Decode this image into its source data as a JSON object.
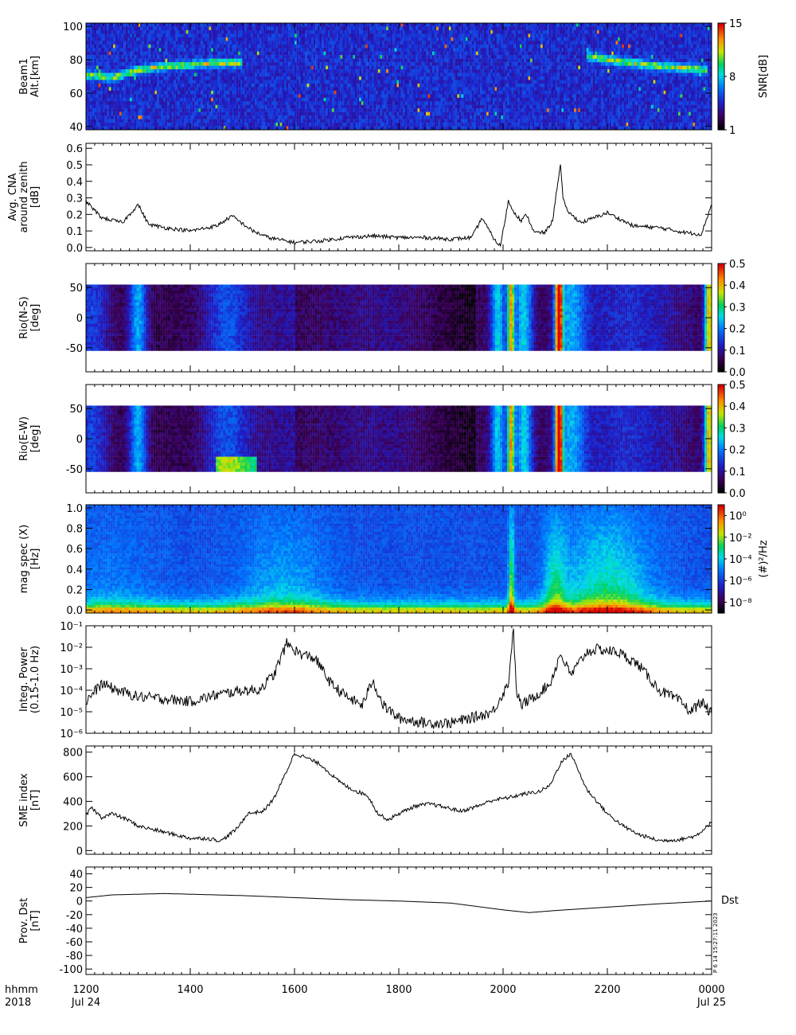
{
  "time_axis": {
    "ticks": [
      {
        "hour": 12,
        "label": "1200",
        "sub": "Jul 24"
      },
      {
        "hour": 14,
        "label": "1400",
        "sub": ""
      },
      {
        "hour": 16,
        "label": "1600",
        "sub": ""
      },
      {
        "hour": 18,
        "label": "1800",
        "sub": ""
      },
      {
        "hour": 20,
        "label": "2000",
        "sub": ""
      },
      {
        "hour": 22,
        "label": "2200",
        "sub": ""
      },
      {
        "hour": 24,
        "label": "0000",
        "sub": "Jul 25"
      }
    ],
    "corner_line1": "hhmm",
    "corner_line2": "2018",
    "range_hours": [
      12,
      24
    ]
  },
  "stamp": "P 6 14 15:27:11 2023",
  "chart_data": [
    {
      "type": "heatmap",
      "ylabel_lines": [
        "Beam1",
        "Alt.[km]"
      ],
      "ylim": [
        38,
        102
      ],
      "yticks": [
        "40",
        "60",
        "80",
        "100"
      ],
      "ytick_values": [
        40,
        60,
        80,
        100
      ],
      "colorbar": {
        "label": "SNR[dB]",
        "range": [
          1,
          15
        ],
        "ticks": [
          "1",
          "8",
          "15"
        ],
        "tick_values": [
          1,
          8,
          15
        ],
        "log": false
      },
      "layers": [
        {
          "name": "",
          "x": [
            12.0,
            12.5,
            13.0,
            13.5,
            14.0,
            14.5,
            15.0
          ],
          "y": [
            71,
            69,
            74,
            76,
            77,
            78,
            78
          ]
        },
        {
          "name": "",
          "x": [
            21.6,
            22.0,
            22.5,
            23.0,
            23.5,
            23.9
          ],
          "y": [
            82,
            80,
            78,
            76,
            75,
            74
          ]
        }
      ]
    },
    {
      "type": "line",
      "ylabel_lines": [
        "Avg. CNA",
        "around zenith",
        "[dB]"
      ],
      "ylim": [
        -0.02,
        0.63
      ],
      "yticks": [
        "0.0",
        "0.1",
        "0.2",
        "0.3",
        "0.4",
        "0.5",
        "0.6"
      ],
      "ytick_values": [
        0,
        0.1,
        0.2,
        0.3,
        0.4,
        0.5,
        0.6
      ],
      "x": [
        12.0,
        12.3,
        12.7,
        13.0,
        13.2,
        13.5,
        14.0,
        14.5,
        14.8,
        15.2,
        15.5,
        16.0,
        16.5,
        17.0,
        17.5,
        18.0,
        18.5,
        19.0,
        19.4,
        19.6,
        19.7,
        19.85,
        19.95,
        20.1,
        20.2,
        20.35,
        20.45,
        20.6,
        20.8,
        20.95,
        21.05,
        21.1,
        21.15,
        21.2,
        21.3,
        21.5,
        22.0,
        22.5,
        23.0,
        23.5,
        23.8,
        24.0
      ],
      "y": [
        0.28,
        0.18,
        0.15,
        0.26,
        0.14,
        0.12,
        0.1,
        0.13,
        0.19,
        0.1,
        0.06,
        0.03,
        0.04,
        0.06,
        0.07,
        0.06,
        0.06,
        0.05,
        0.06,
        0.18,
        0.12,
        0.04,
        0.01,
        0.28,
        0.22,
        0.16,
        0.2,
        0.09,
        0.09,
        0.16,
        0.4,
        0.5,
        0.3,
        0.24,
        0.2,
        0.15,
        0.21,
        0.13,
        0.12,
        0.09,
        0.08,
        0.26
      ]
    },
    {
      "type": "heatmap",
      "ylabel_lines": [
        "Rio(N-S)",
        "[deg]"
      ],
      "ylim": [
        -90,
        90
      ],
      "yticks": [
        "-50",
        "0",
        "50"
      ],
      "ytick_values": [
        -50,
        0,
        50
      ],
      "colorbar": {
        "label": "",
        "range": [
          0,
          0.5
        ],
        "ticks": [
          "0.0",
          "0.1",
          "0.2",
          "0.3",
          "0.4",
          "0.5"
        ],
        "tick_values": [
          0,
          0.1,
          0.2,
          0.3,
          0.4,
          0.5
        ],
        "log": false
      },
      "extent": [
        -56,
        56
      ]
    },
    {
      "type": "heatmap",
      "ylabel_lines": [
        "Rio(E-W)",
        "[deg]"
      ],
      "ylim": [
        -90,
        90
      ],
      "yticks": [
        "-50",
        "0",
        "50"
      ],
      "ytick_values": [
        -50,
        0,
        50
      ],
      "colorbar": {
        "label": "",
        "range": [
          0,
          0.5
        ],
        "ticks": [
          "0.0",
          "0.1",
          "0.2",
          "0.3",
          "0.4",
          "0.5"
        ],
        "tick_values": [
          0,
          0.1,
          0.2,
          0.3,
          0.4,
          0.5
        ],
        "log": false
      },
      "extent": [
        -56,
        56
      ]
    },
    {
      "type": "heatmap",
      "ylabel_lines": [
        "mag spec (X)",
        "[Hz]"
      ],
      "ylim": [
        -0.03,
        1.03
      ],
      "yticks": [
        "0.0",
        "0.2",
        "0.4",
        "0.6",
        "0.8",
        "1.0"
      ],
      "ytick_values": [
        0,
        0.2,
        0.4,
        0.6,
        0.8,
        1.0
      ],
      "colorbar": {
        "label": "(#)²/Hz",
        "range": [
          1e-09,
          10
        ],
        "ticks": [
          "10⁻⁸",
          "10⁻⁶",
          "10⁻⁴",
          "10⁻²",
          "10⁰"
        ],
        "tick_values": [
          1e-08,
          1e-06,
          0.0001,
          0.01,
          1
        ],
        "log": true
      }
    },
    {
      "type": "line",
      "ylabel_lines": [
        "Integ. Power",
        "(0.15-1.0 Hz)"
      ],
      "ylim": [
        1e-06,
        0.1
      ],
      "log_y": true,
      "yticks": [
        "10⁻⁶",
        "10⁻⁵",
        "10⁻⁴",
        "10⁻³",
        "10⁻²",
        "10⁻¹"
      ],
      "ytick_values": [
        1e-06,
        1e-05,
        0.0001,
        0.001,
        0.01,
        0.1
      ],
      "x": [
        12.0,
        12.3,
        12.6,
        13.0,
        13.5,
        14.0,
        14.5,
        15.0,
        15.3,
        15.6,
        15.85,
        16.1,
        16.4,
        16.7,
        17.0,
        17.3,
        17.5,
        17.7,
        18.0,
        18.5,
        19.0,
        19.5,
        19.8,
        20.1,
        20.2,
        20.25,
        20.35,
        20.6,
        20.9,
        21.1,
        21.3,
        21.6,
        21.8,
        22.2,
        22.6,
        23.0,
        23.4,
        23.6,
        23.8,
        24.0
      ],
      "y": [
        3e-05,
        0.0002,
        0.0001,
        5e-05,
        4e-05,
        3e-05,
        6e-05,
        0.0001,
        0.0001,
        0.0005,
        0.015,
        0.005,
        0.003,
        0.0002,
        5e-05,
        2e-05,
        0.0003,
        2e-05,
        5e-06,
        3e-06,
        3e-06,
        6e-06,
        1e-05,
        0.0002,
        0.09,
        0.0001,
        2e-05,
        5e-05,
        0.0002,
        0.005,
        0.0005,
        0.006,
        0.008,
        0.006,
        0.0015,
        0.0001,
        3e-05,
        1e-05,
        3e-05,
        8e-06
      ]
    },
    {
      "type": "line",
      "ylabel_lines": [
        "SME index",
        "[nT]"
      ],
      "ylim": [
        -30,
        850
      ],
      "yticks": [
        "0",
        "200",
        "400",
        "600",
        "800"
      ],
      "ytick_values": [
        0,
        200,
        400,
        600,
        800
      ],
      "x": [
        12.0,
        12.1,
        12.3,
        12.5,
        12.8,
        13.0,
        13.5,
        14.0,
        14.3,
        14.6,
        14.9,
        15.1,
        15.4,
        15.6,
        15.8,
        16.0,
        16.2,
        16.5,
        16.8,
        17.0,
        17.2,
        17.4,
        17.6,
        17.8,
        18.0,
        18.3,
        18.6,
        18.9,
        19.2,
        19.5,
        19.8,
        20.1,
        20.4,
        20.7,
        20.9,
        21.1,
        21.3,
        21.6,
        21.8,
        22.0,
        22.3,
        22.6,
        23.0,
        23.4,
        23.7,
        24.0
      ],
      "y": [
        280,
        350,
        270,
        300,
        250,
        200,
        150,
        100,
        100,
        80,
        180,
        300,
        320,
        420,
        600,
        790,
        760,
        700,
        580,
        520,
        480,
        450,
        300,
        250,
        300,
        360,
        380,
        350,
        320,
        360,
        410,
        430,
        460,
        480,
        530,
        710,
        790,
        500,
        400,
        300,
        200,
        130,
        80,
        90,
        120,
        230
      ]
    },
    {
      "type": "line",
      "ylabel_lines": [
        "Prov. Dst",
        "[nT]"
      ],
      "legend": "Dst",
      "ylim": [
        -108,
        50
      ],
      "yticks": [
        "-100",
        "-80",
        "-60",
        "-40",
        "-20",
        "0",
        "20",
        "40"
      ],
      "ytick_values": [
        -100,
        -80,
        -60,
        -40,
        -20,
        0,
        20,
        40
      ],
      "x": [
        12.0,
        12.5,
        13.0,
        13.5,
        14.0,
        15.0,
        16.0,
        17.0,
        18.0,
        19.0,
        19.5,
        20.0,
        20.5,
        21.0,
        22.0,
        23.0,
        24.0
      ],
      "y": [
        5,
        9,
        10,
        11,
        10,
        8,
        5,
        2,
        0,
        -3,
        -8,
        -13,
        -17,
        -14,
        -9,
        -4,
        0
      ]
    }
  ]
}
